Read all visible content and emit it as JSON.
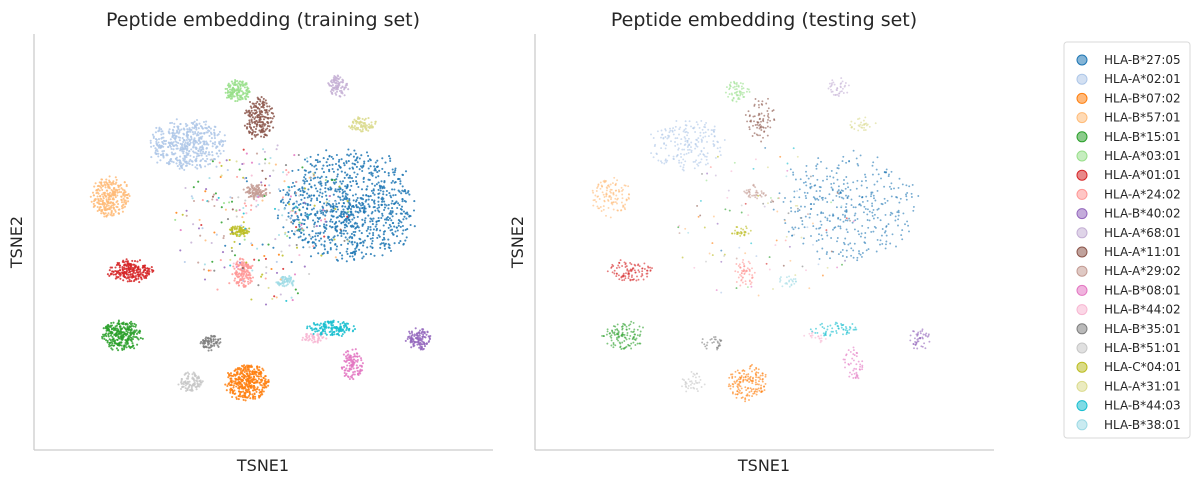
{
  "chart_data": [
    {
      "type": "scatter",
      "title": "Peptide embedding (training set)",
      "xlabel": "TSNE1",
      "ylabel": "TSNE2",
      "grid": false,
      "ticks": false,
      "x_range": [
        -100,
        100
      ],
      "y_range": [
        -100,
        100
      ],
      "legend_placement": "right",
      "density": "high",
      "clusters": [
        {
          "name": "HLA-B*27:05",
          "color": "#1f77b4",
          "cx": 42,
          "cy": 20,
          "rx": 32,
          "ry": 30,
          "weight": 10
        },
        {
          "name": "HLA-A*02:01",
          "color": "#aec7e8",
          "cx": -38,
          "cy": 54,
          "rx": 18,
          "ry": 14,
          "weight": 5
        },
        {
          "name": "HLA-B*07:02",
          "color": "#ff7f0e",
          "cx": -8,
          "cy": -78,
          "rx": 10,
          "ry": 10,
          "weight": 4
        },
        {
          "name": "HLA-B*57:01",
          "color": "#ffbb78",
          "cx": -76,
          "cy": 25,
          "rx": 9,
          "ry": 11,
          "weight": 3
        },
        {
          "name": "HLA-B*15:01",
          "color": "#2ca02c",
          "cx": -70,
          "cy": -52,
          "rx": 10,
          "ry": 8,
          "weight": 3
        },
        {
          "name": "HLA-A*03:01",
          "color": "#98df8a",
          "cx": -13,
          "cy": 84,
          "rx": 6,
          "ry": 6,
          "weight": 1.5
        },
        {
          "name": "HLA-A*01:01",
          "color": "#d62728",
          "cx": -66,
          "cy": -16,
          "rx": 11,
          "ry": 6,
          "weight": 2.5
        },
        {
          "name": "HLA-A*24:02",
          "color": "#ff9896",
          "cx": -10,
          "cy": -17,
          "rx": 5,
          "ry": 8,
          "weight": 1.5
        },
        {
          "name": "HLA-B*40:02",
          "color": "#9467bd",
          "cx": 77,
          "cy": -54,
          "rx": 6,
          "ry": 6,
          "weight": 1.2
        },
        {
          "name": "HLA-A*68:01",
          "color": "#c5b0d5",
          "cx": 37,
          "cy": 86,
          "rx": 5,
          "ry": 6,
          "weight": 1
        },
        {
          "name": "HLA-A*11:01",
          "color": "#8c564b",
          "cx": -2,
          "cy": 68,
          "rx": 7,
          "ry": 12,
          "weight": 2
        },
        {
          "name": "HLA-A*29:02",
          "color": "#c49c94",
          "cx": -4,
          "cy": 28,
          "rx": 6,
          "ry": 4,
          "weight": 1
        },
        {
          "name": "HLA-B*08:01",
          "color": "#e377c2",
          "cx": 44,
          "cy": -68,
          "rx": 5,
          "ry": 9,
          "weight": 1.2
        },
        {
          "name": "HLA-B*44:02",
          "color": "#f7b6d2",
          "cx": 25,
          "cy": -53,
          "rx": 6,
          "ry": 3,
          "weight": 0.5
        },
        {
          "name": "HLA-B*35:01",
          "color": "#7f7f7f",
          "cx": -26,
          "cy": -56,
          "rx": 5,
          "ry": 4,
          "weight": 0.8
        },
        {
          "name": "HLA-B*51:01",
          "color": "#c7c7c7",
          "cx": -36,
          "cy": -78,
          "rx": 6,
          "ry": 6,
          "weight": 1
        },
        {
          "name": "HLA-C*04:01",
          "color": "#bcbd22",
          "cx": -12,
          "cy": 6,
          "rx": 5,
          "ry": 3,
          "weight": 0.8
        },
        {
          "name": "HLA-A*31:01",
          "color": "#dbdb8d",
          "cx": 49,
          "cy": 65,
          "rx": 7,
          "ry": 4,
          "weight": 0.8
        },
        {
          "name": "HLA-B*44:03",
          "color": "#17becf",
          "cx": 34,
          "cy": -48,
          "rx": 12,
          "ry": 4,
          "weight": 1.5
        },
        {
          "name": "HLA-B*38:01",
          "color": "#9edae5",
          "cx": 11,
          "cy": -22,
          "rx": 5,
          "ry": 3,
          "weight": 0.6
        }
      ]
    },
    {
      "type": "scatter",
      "title": "Peptide embedding (testing set)",
      "xlabel": "TSNE1",
      "ylabel": "TSNE2",
      "grid": false,
      "ticks": false,
      "x_range": [
        -100,
        100
      ],
      "y_range": [
        -100,
        100
      ],
      "legend_placement": "right",
      "density": "low",
      "same_clusters_as": "training set"
    }
  ],
  "legend": {
    "entries": [
      {
        "label": "HLA-B*27:05",
        "color": "#1f77b4"
      },
      {
        "label": "HLA-A*02:01",
        "color": "#aec7e8"
      },
      {
        "label": "HLA-B*07:02",
        "color": "#ff7f0e"
      },
      {
        "label": "HLA-B*57:01",
        "color": "#ffbb78"
      },
      {
        "label": "HLA-B*15:01",
        "color": "#2ca02c"
      },
      {
        "label": "HLA-A*03:01",
        "color": "#98df8a"
      },
      {
        "label": "HLA-A*01:01",
        "color": "#d62728"
      },
      {
        "label": "HLA-A*24:02",
        "color": "#ff9896"
      },
      {
        "label": "HLA-B*40:02",
        "color": "#9467bd"
      },
      {
        "label": "HLA-A*68:01",
        "color": "#c5b0d5"
      },
      {
        "label": "HLA-A*11:01",
        "color": "#8c564b"
      },
      {
        "label": "HLA-A*29:02",
        "color": "#c49c94"
      },
      {
        "label": "HLA-B*08:01",
        "color": "#e377c2"
      },
      {
        "label": "HLA-B*44:02",
        "color": "#f7b6d2"
      },
      {
        "label": "HLA-B*35:01",
        "color": "#7f7f7f"
      },
      {
        "label": "HLA-B*51:01",
        "color": "#c7c7c7"
      },
      {
        "label": "HLA-C*04:01",
        "color": "#bcbd22"
      },
      {
        "label": "HLA-A*31:01",
        "color": "#dbdb8d"
      },
      {
        "label": "HLA-B*44:03",
        "color": "#17becf"
      },
      {
        "label": "HLA-B*38:01",
        "color": "#9edae5"
      }
    ]
  }
}
